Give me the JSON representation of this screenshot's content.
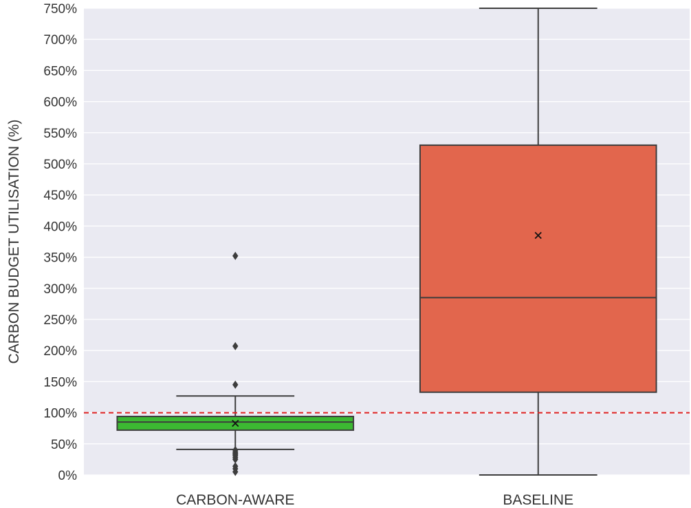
{
  "chart_data": {
    "type": "box",
    "ylabel": "CARBON BUDGET UTILISATION (%)",
    "xlabel": "",
    "ylim": [
      0,
      750
    ],
    "y_tick_values": [
      0,
      50,
      100,
      150,
      200,
      250,
      300,
      350,
      400,
      450,
      500,
      550,
      600,
      650,
      700,
      750
    ],
    "y_tick_labels": [
      "0%",
      "50%",
      "100%",
      "150%",
      "200%",
      "250%",
      "300%",
      "350%",
      "400%",
      "450%",
      "500%",
      "550%",
      "600%",
      "650%",
      "700%",
      "750%"
    ],
    "categories": [
      "CARBON-AWARE",
      "BASELINE"
    ],
    "boxes": [
      {
        "category": "CARBON-AWARE",
        "color": "#3cb832",
        "whisker_low": 41,
        "q1": 72,
        "median": 85,
        "q3": 94,
        "whisker_high": 127,
        "mean": 83,
        "outliers": [
          352,
          207,
          145,
          40,
          37,
          35,
          33,
          31,
          28,
          25,
          14,
          10,
          5
        ]
      },
      {
        "category": "BASELINE",
        "color": "#e2664d",
        "whisker_low": 0,
        "q1": 133,
        "median": 285,
        "q3": 530,
        "whisker_high": 750,
        "mean": 385,
        "outliers": []
      }
    ],
    "reference_line": {
      "y": 100,
      "color": "#e02020",
      "style": "dashed"
    },
    "grid": true,
    "background": "#eaeaf2",
    "legend": "none"
  }
}
